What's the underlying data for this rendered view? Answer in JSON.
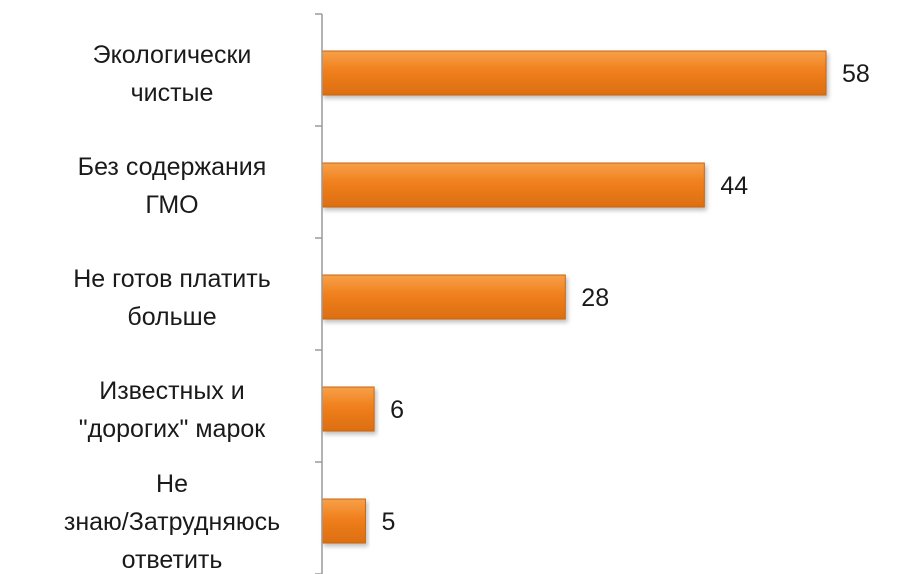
{
  "chart_data": {
    "type": "bar",
    "orientation": "horizontal",
    "categories": [
      [
        "Экологически",
        "чистые"
      ],
      [
        "Без содержания",
        "ГМО"
      ],
      [
        "Не готов платить",
        "больше"
      ],
      [
        "Известных и",
        "\"дорогих\" марок"
      ],
      [
        "Не",
        "знаю/Затрудняюсь",
        "ответить"
      ]
    ],
    "values": [
      58,
      44,
      28,
      6,
      5
    ],
    "data_labels": [
      "58",
      "44",
      "28",
      "6",
      "5"
    ],
    "xlim": [
      0,
      58
    ],
    "grid": false,
    "legend": "none",
    "colors": {
      "bar": "#f07f1c",
      "bar_edge": "#c9650f",
      "axis": "#9a9a9a",
      "text": "#1a1a1a"
    }
  }
}
